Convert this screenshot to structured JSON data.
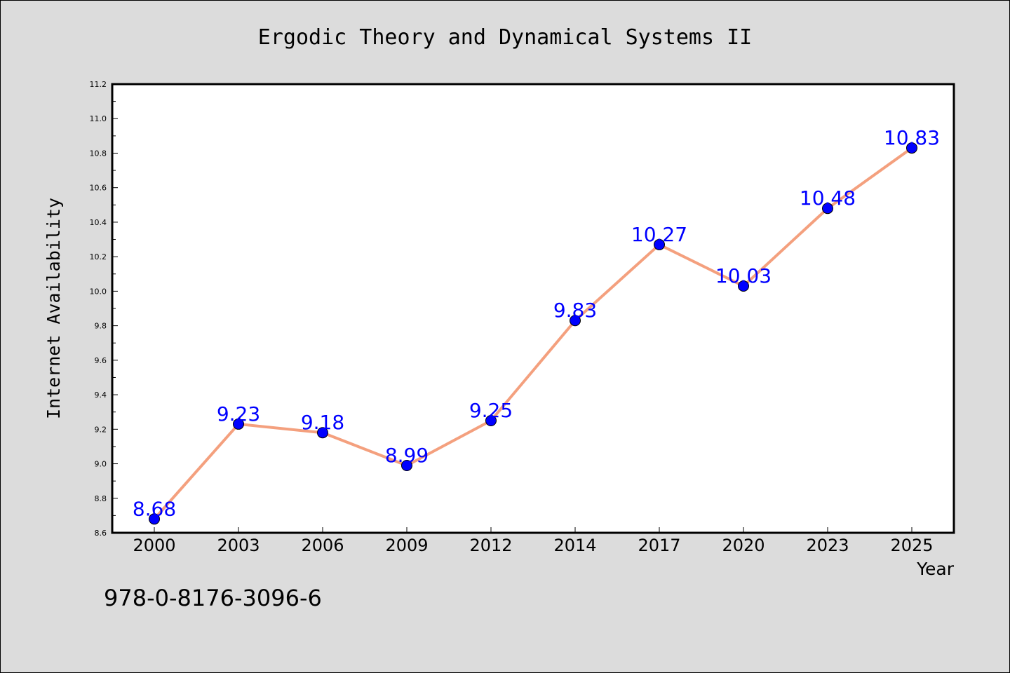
{
  "isbn": "978-0-8176-3096-6",
  "colors": {
    "background": "#dcdcdc",
    "line": "#f4a07e",
    "marker": "#0000ff",
    "label": "#0000ff"
  },
  "chart_data": {
    "type": "line",
    "title": "Ergodic Theory and Dynamical Systems II",
    "xlabel": "Year",
    "ylabel": "Internet Availability",
    "categories": [
      "2000",
      "2003",
      "2006",
      "2009",
      "2012",
      "2014",
      "2017",
      "2020",
      "2023",
      "2025"
    ],
    "series": [
      {
        "values": [
          8.68,
          9.23,
          9.18,
          8.99,
          9.25,
          9.83,
          10.27,
          10.03,
          10.48,
          10.83
        ]
      }
    ],
    "data_labels": [
      "8.68",
      "9.23",
      "9.18",
      "8.99",
      "9.25",
      "9.83",
      "10.27",
      "10.03",
      "10.48",
      "10.83"
    ],
    "ylim": [
      8.6,
      11.2
    ],
    "yticks": [
      "8.6",
      "8.8",
      "9.0",
      "9.2",
      "9.4",
      "9.6",
      "9.8",
      "10.0",
      "10.2",
      "10.4",
      "10.6",
      "10.8",
      "11.0",
      "11.2"
    ],
    "grid": false,
    "legend": "none"
  }
}
